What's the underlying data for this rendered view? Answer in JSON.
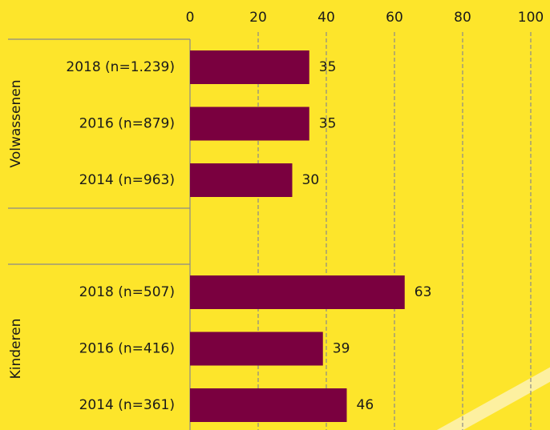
{
  "chart_data": {
    "type": "bar",
    "orientation": "horizontal",
    "color": "#7a003f",
    "xlim": [
      0,
      100
    ],
    "xticks": [
      0,
      20,
      40,
      60,
      80,
      100
    ],
    "grid": true,
    "groups": [
      {
        "name": "Volwassenen",
        "categories": [
          "2018 (n=1.239)",
          "2016 (n=879)",
          "2014 (n=963)"
        ],
        "values": [
          35,
          35,
          30
        ]
      },
      {
        "name": "Kinderen",
        "categories": [
          "2018 (n=507)",
          "2016 (n=416)",
          "2014 (n=361)"
        ],
        "values": [
          63,
          39,
          46
        ]
      }
    ]
  }
}
